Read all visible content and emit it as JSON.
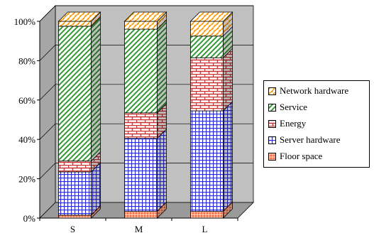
{
  "chart_data": {
    "type": "bar",
    "stacked": true,
    "three_d": true,
    "categories": [
      "S",
      "M",
      "L"
    ],
    "ylim": [
      0,
      100
    ],
    "yticks": [
      "0%",
      "20%",
      "40%",
      "60%",
      "80%",
      "100%"
    ],
    "grid": true,
    "legend_position": "right",
    "series": [
      {
        "name": "Floor space",
        "key": "floor",
        "color": "#ff6633",
        "pattern": "fine-crosshatch",
        "values": [
          1.5,
          3.5,
          3.5
        ]
      },
      {
        "name": "Server hardware",
        "key": "server",
        "color": "#3333ff",
        "pattern": "grid",
        "values": [
          22,
          37,
          51
        ]
      },
      {
        "name": "Energy",
        "key": "energy",
        "color": "#cc3333",
        "pattern": "brick",
        "values": [
          5.5,
          13,
          27
        ]
      },
      {
        "name": "Service",
        "key": "service",
        "color": "#339933",
        "pattern": "diagonal",
        "values": [
          68.5,
          42.5,
          11
        ]
      },
      {
        "name": "Network hardware",
        "key": "network",
        "color": "#ff9900",
        "pattern": "diagonal",
        "values": [
          2.5,
          4,
          7.5
        ]
      }
    ]
  }
}
